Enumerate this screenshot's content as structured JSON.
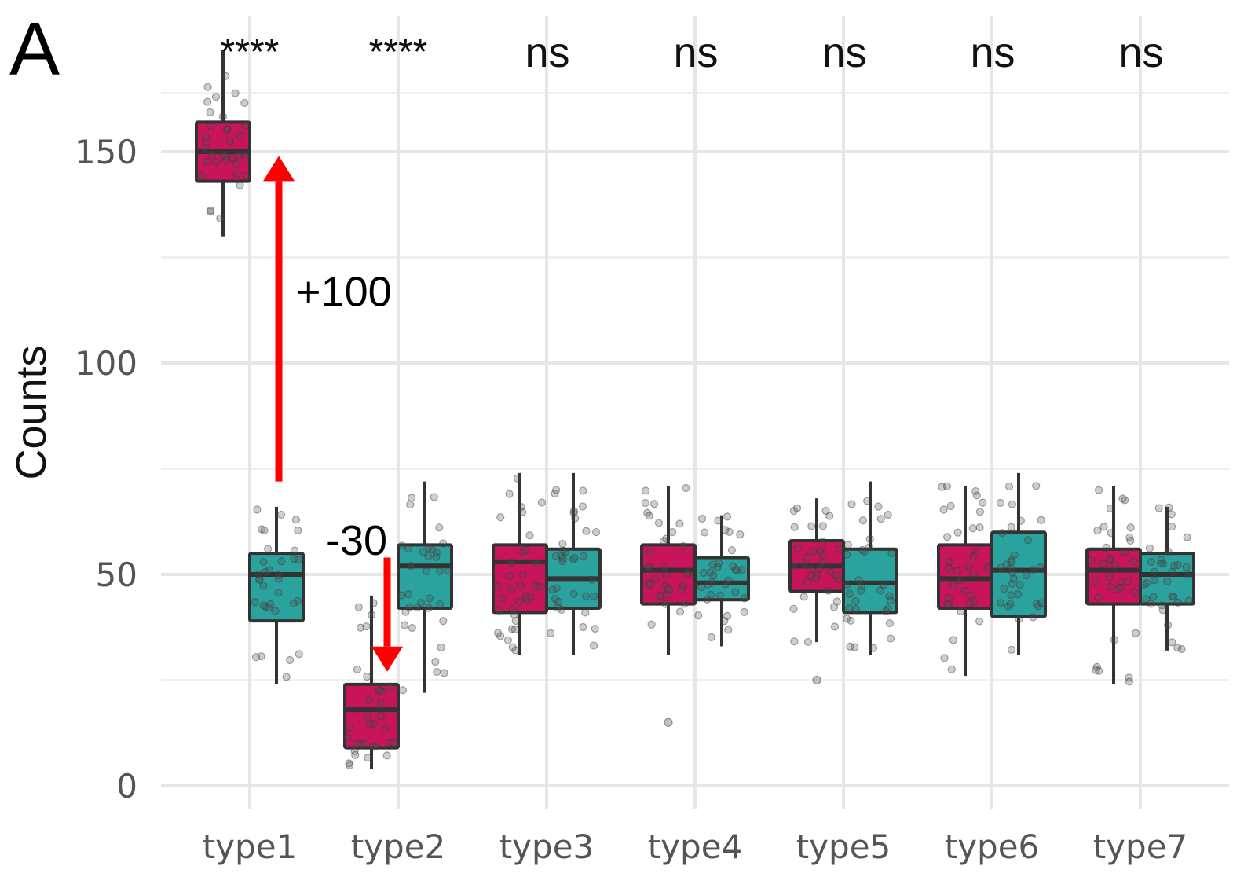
{
  "chart_data": {
    "type": "box",
    "panel_label": "A",
    "ylabel": "Counts",
    "xlabel": "",
    "ylim": [
      0,
      170
    ],
    "yticks": [
      0,
      50,
      100,
      150
    ],
    "grid": true,
    "categories": [
      "type1",
      "type2",
      "type3",
      "type4",
      "type5",
      "type6",
      "type7"
    ],
    "significance": [
      "****",
      "****",
      "ns",
      "ns",
      "ns",
      "ns",
      "ns"
    ],
    "series": [
      {
        "color": "#c8145a",
        "boxes": [
          {
            "min": 130,
            "q1": 143,
            "median": 150,
            "q3": 157,
            "max": 174
          },
          {
            "min": 4,
            "q1": 9,
            "median": 18,
            "q3": 24,
            "max": 45
          },
          {
            "min": 31,
            "q1": 41,
            "median": 53,
            "q3": 57,
            "max": 74
          },
          {
            "min": 31,
            "q1": 43,
            "median": 51,
            "q3": 57,
            "max": 71
          },
          {
            "min": 34,
            "q1": 46,
            "median": 52,
            "q3": 58,
            "max": 68
          },
          {
            "min": 26,
            "q1": 42,
            "median": 49,
            "q3": 57,
            "max": 71
          },
          {
            "min": 24,
            "q1": 43,
            "median": 51,
            "q3": 56,
            "max": 71
          }
        ],
        "outliers": [
          [],
          [],
          [],
          [
            15
          ],
          [
            25
          ],
          [],
          []
        ]
      },
      {
        "color": "#2aa39e",
        "boxes": [
          {
            "min": 24,
            "q1": 39,
            "median": 50,
            "q3": 55,
            "max": 66
          },
          {
            "min": 22,
            "q1": 42,
            "median": 52,
            "q3": 57,
            "max": 72
          },
          {
            "min": 31,
            "q1": 42,
            "median": 49,
            "q3": 56,
            "max": 74
          },
          {
            "min": 33,
            "q1": 44,
            "median": 48,
            "q3": 54,
            "max": 64
          },
          {
            "min": 31,
            "q1": 41,
            "median": 48,
            "q3": 56,
            "max": 72
          },
          {
            "min": 31,
            "q1": 40,
            "median": 51,
            "q3": 60,
            "max": 74
          },
          {
            "min": 32,
            "q1": 43,
            "median": 50,
            "q3": 55,
            "max": 66
          }
        ],
        "outliers": [
          [],
          [],
          [],
          [],
          [],
          [],
          []
        ]
      }
    ],
    "annotations": [
      {
        "text": "+100",
        "color": "#ff0000",
        "arrow_from": 72,
        "arrow_to": 149,
        "category": "type1"
      },
      {
        "text": "-30",
        "color": "#ff0000",
        "arrow_from": 54,
        "arrow_to": 27,
        "category": "type2"
      }
    ]
  }
}
